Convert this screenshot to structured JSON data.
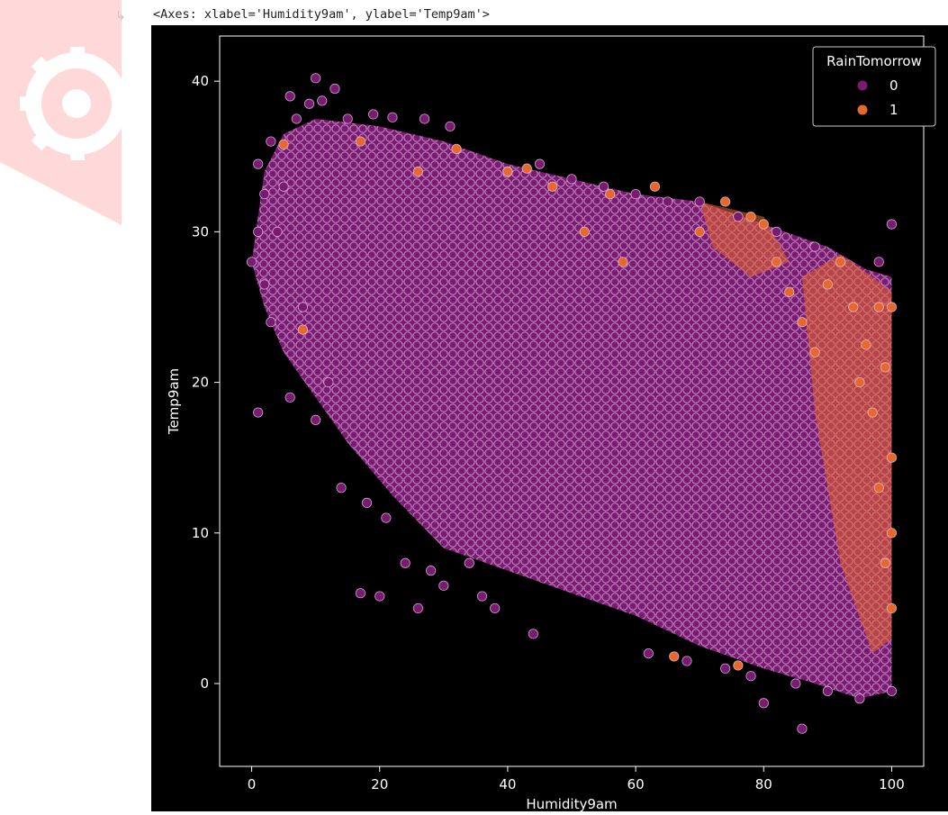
{
  "notebook": {
    "output_icon": "output-arrow-icon",
    "repr_text": "<Axes: xlabel='Humidity9am', ylabel='Temp9am'>"
  },
  "watermark": {
    "icon": "gear-logo-icon",
    "color": "#ff9a9a"
  },
  "colors": {
    "figure_bg": "#000000",
    "class0": "#7b1a72",
    "class1": "#e8672a",
    "marker_edge": "#e6c9e6"
  },
  "chart_data": {
    "type": "scatter",
    "title": "",
    "xlabel": "Humidity9am",
    "ylabel": "Temp9am",
    "xlim": [
      -5,
      105
    ],
    "ylim": [
      -5.5,
      43
    ],
    "xticks": [
      0,
      20,
      40,
      60,
      80,
      100
    ],
    "yticks": [
      0,
      10,
      20,
      30,
      40
    ],
    "grid": false,
    "legend": {
      "title": "RainTomorrow",
      "placement": "top-right",
      "entries": [
        "0",
        "1"
      ]
    },
    "series": [
      {
        "name": "0",
        "color": "#7b1a72",
        "points": [
          [
            0,
            28
          ],
          [
            1,
            34.5
          ],
          [
            1,
            30
          ],
          [
            1,
            18
          ],
          [
            2,
            32.5
          ],
          [
            2,
            26.5
          ],
          [
            3,
            36
          ],
          [
            3,
            24
          ],
          [
            4,
            30
          ],
          [
            5,
            33
          ],
          [
            6,
            39
          ],
          [
            6,
            19
          ],
          [
            7,
            37.5
          ],
          [
            8,
            25
          ],
          [
            9,
            38.5
          ],
          [
            10,
            40.2
          ],
          [
            10,
            17.5
          ],
          [
            11,
            38.7
          ],
          [
            12,
            20
          ],
          [
            13,
            39.5
          ],
          [
            14,
            13
          ],
          [
            15,
            37.5
          ],
          [
            17,
            6
          ],
          [
            18,
            12
          ],
          [
            19,
            37.8
          ],
          [
            20,
            5.8
          ],
          [
            21,
            11
          ],
          [
            22,
            37.6
          ],
          [
            24,
            8
          ],
          [
            26,
            5
          ],
          [
            27,
            37.5
          ],
          [
            28,
            7.5
          ],
          [
            30,
            6.5
          ],
          [
            31,
            37
          ],
          [
            34,
            8
          ],
          [
            36,
            5.8
          ],
          [
            38,
            5
          ],
          [
            40,
            34
          ],
          [
            44,
            3.3
          ],
          [
            45,
            34.5
          ],
          [
            50,
            33.5
          ],
          [
            55,
            33
          ],
          [
            60,
            32.5
          ],
          [
            62,
            2
          ],
          [
            65,
            32
          ],
          [
            68,
            1.5
          ],
          [
            70,
            32
          ],
          [
            74,
            1
          ],
          [
            76,
            31
          ],
          [
            78,
            0.5
          ],
          [
            80,
            -1.3
          ],
          [
            82,
            30
          ],
          [
            85,
            0
          ],
          [
            86,
            -3
          ],
          [
            88,
            29
          ],
          [
            90,
            -0.5
          ],
          [
            95,
            -1
          ],
          [
            98,
            28
          ],
          [
            100,
            30.5
          ],
          [
            100,
            -0.5
          ]
        ]
      },
      {
        "name": "1",
        "color": "#e8672a",
        "points": [
          [
            5,
            35.8
          ],
          [
            8,
            23.5
          ],
          [
            17,
            36
          ],
          [
            26,
            34
          ],
          [
            32,
            35.5
          ],
          [
            40,
            34
          ],
          [
            43,
            34.2
          ],
          [
            47,
            33
          ],
          [
            52,
            30
          ],
          [
            56,
            32.5
          ],
          [
            58,
            28
          ],
          [
            63,
            33
          ],
          [
            66,
            1.8
          ],
          [
            70,
            30
          ],
          [
            74,
            32
          ],
          [
            76,
            1.2
          ],
          [
            78,
            31
          ],
          [
            80,
            30.5
          ],
          [
            82,
            28
          ],
          [
            84,
            26
          ],
          [
            86,
            24
          ],
          [
            88,
            22
          ],
          [
            90,
            26.5
          ],
          [
            92,
            28
          ],
          [
            94,
            25
          ],
          [
            95,
            20
          ],
          [
            96,
            22.5
          ],
          [
            97,
            18
          ],
          [
            98,
            25
          ],
          [
            98,
            13
          ],
          [
            99,
            21
          ],
          [
            99,
            8
          ],
          [
            100,
            25
          ],
          [
            100,
            15
          ],
          [
            100,
            10
          ],
          [
            100,
            5
          ]
        ]
      }
    ]
  }
}
